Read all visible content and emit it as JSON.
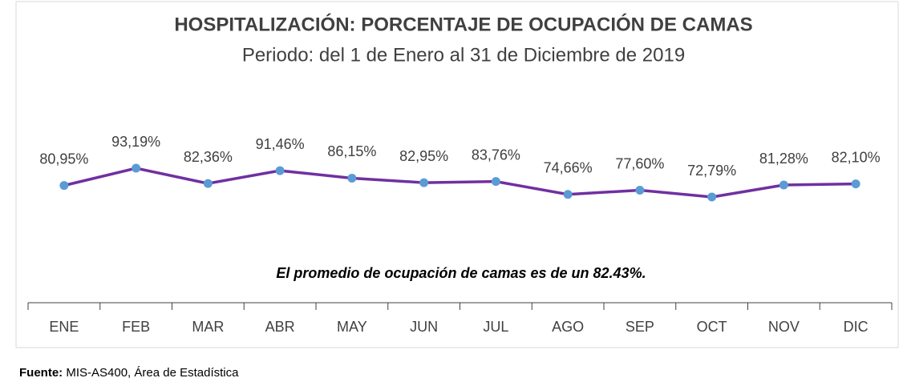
{
  "chart_data": {
    "type": "line",
    "title": "HOSPITALIZACIÓN: PORCENTAJE DE OCUPACIÓN DE CAMAS",
    "subtitle": "Periodo: del 1 de Enero al 31 de Diciembre de 2019",
    "annotation": "El promedio de ocupación de camas es de un 82.43%.",
    "source_label": "Fuente:",
    "source_text": "MIS-AS400, Área de Estadística",
    "categories": [
      "ENE",
      "FEB",
      "MAR",
      "ABR",
      "MAY",
      "JUN",
      "JUL",
      "AGO",
      "SEP",
      "OCT",
      "NOV",
      "DIC"
    ],
    "series": [
      {
        "name": "Porcentaje de ocupación",
        "color": "#7030a0",
        "marker_color": "#5b9bd5",
        "values": [
          80.95,
          93.19,
          82.36,
          91.46,
          86.15,
          82.95,
          83.76,
          74.66,
          77.6,
          72.79,
          81.28,
          82.1
        ],
        "value_labels": [
          "80,95%",
          "93,19%",
          "82,36%",
          "91,46%",
          "86,15%",
          "82,95%",
          "83,76%",
          "74,66%",
          "77,60%",
          "72,79%",
          "81,28%",
          "82,10%"
        ]
      }
    ],
    "ylim": [
      0,
      100
    ]
  }
}
